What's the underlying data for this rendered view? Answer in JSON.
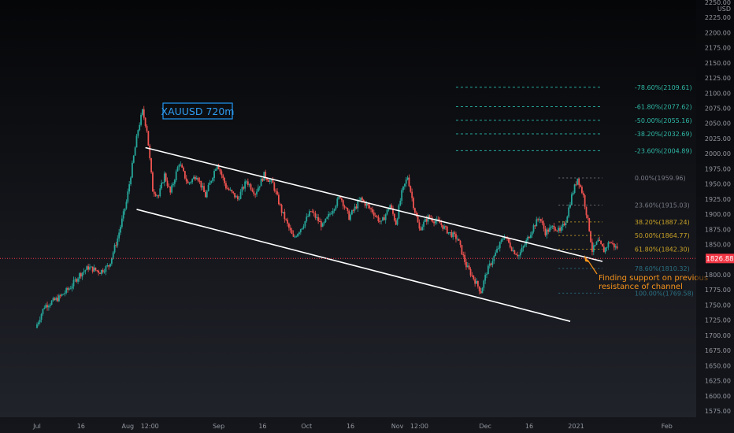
{
  "chart_data": {
    "type": "candlestick",
    "symbol_box": "XAUUSD 720m",
    "currency": "USD",
    "y_range": [
      1562,
      2255
    ],
    "y_ticks": [
      1575,
      1600,
      1625,
      1650,
      1675,
      1700,
      1725,
      1750,
      1775,
      1800,
      1825,
      1850,
      1875,
      1900,
      1925,
      1950,
      1975,
      2000,
      2025,
      2050,
      2075,
      2100,
      2125,
      2150,
      2175,
      2200,
      2225
    ],
    "y_top_cut_label": "2250.00",
    "x_ticks": [
      {
        "label": "Jul",
        "day": 0
      },
      {
        "label": "16",
        "day": 15
      },
      {
        "label": "Aug",
        "day": 31
      },
      {
        "label": "12:00",
        "day": 38.5
      },
      {
        "label": "Sep",
        "day": 62
      },
      {
        "label": "16",
        "day": 77
      },
      {
        "label": "Oct",
        "day": 92
      },
      {
        "label": "16",
        "day": 107
      },
      {
        "label": "Nov",
        "day": 123
      },
      {
        "label": "12:00",
        "day": 130.5
      },
      {
        "label": "Dec",
        "day": 153
      },
      {
        "label": "16",
        "day": 168
      },
      {
        "label": "2021",
        "day": 184
      },
      {
        "label": "Feb",
        "day": 215
      }
    ],
    "current_price": "1826.88",
    "current_price_value": 1826.88,
    "fib_upper": [
      {
        "label": "-78.60%(2109.61)",
        "value": 2109.61
      },
      {
        "label": "-61.80%(2077.62)",
        "value": 2077.62
      },
      {
        "label": "-50.00%(2055.16)",
        "value": 2055.16
      },
      {
        "label": "-38.20%(2032.69)",
        "value": 2032.69
      },
      {
        "label": "-23.60%(2004.89)",
        "value": 2004.89
      }
    ],
    "fib_lower": [
      {
        "label": "0.00%(1959.96)",
        "value": 1959.96,
        "color": "#787b86"
      },
      {
        "label": "23.60%(1915.03)",
        "value": 1915.03,
        "color": "#787b86"
      },
      {
        "label": "38.20%(1887.24)",
        "value": 1887.24,
        "color": "#c9a227"
      },
      {
        "label": "50.00%(1864.77)",
        "value": 1864.77,
        "color": "#c9a227"
      },
      {
        "label": "61.80%(1842.30)",
        "value": 1842.3,
        "color": "#c9a227"
      },
      {
        "label": "78.60%(1810.32)",
        "value": 1810.32,
        "color": "#2a6f80"
      },
      {
        "label": "100.00%(1769.58)",
        "value": 1769.58,
        "color": "#2a6f80"
      }
    ],
    "channel": {
      "upper": [
        [
          37,
          2010
        ],
        [
          193,
          1822
        ]
      ],
      "lower": [
        [
          34,
          1908
        ],
        [
          182,
          1723
        ]
      ]
    },
    "annotation": {
      "lines": [
        "Finding support on previous",
        "resistance of channel"
      ],
      "color": "#f7931a"
    },
    "colors": {
      "up": "#26a69a",
      "down": "#ef5350",
      "fib_upper": "#26a69a",
      "channel": "#ffffff",
      "price_tag": "#f23645"
    },
    "keypoints": [
      [
        0,
        1712
      ],
      [
        3,
        1748
      ],
      [
        8,
        1762
      ],
      [
        12,
        1780
      ],
      [
        15,
        1800
      ],
      [
        18,
        1812
      ],
      [
        22,
        1805
      ],
      [
        25,
        1815
      ],
      [
        28,
        1860
      ],
      [
        31,
        1920
      ],
      [
        33,
        1980
      ],
      [
        35,
        2040
      ],
      [
        36.5,
        2070
      ],
      [
        38,
        2040
      ],
      [
        40,
        1940
      ],
      [
        42,
        1930
      ],
      [
        44,
        1965
      ],
      [
        46,
        1935
      ],
      [
        49,
        1985
      ],
      [
        52,
        1950
      ],
      [
        55,
        1965
      ],
      [
        58,
        1930
      ],
      [
        62,
        1985
      ],
      [
        65,
        1945
      ],
      [
        69,
        1925
      ],
      [
        72,
        1955
      ],
      [
        75,
        1935
      ],
      [
        78,
        1965
      ],
      [
        81,
        1950
      ],
      [
        84,
        1905
      ],
      [
        88,
        1860
      ],
      [
        91,
        1880
      ],
      [
        94,
        1905
      ],
      [
        98,
        1880
      ],
      [
        101,
        1905
      ],
      [
        104,
        1930
      ],
      [
        107,
        1895
      ],
      [
        111,
        1925
      ],
      [
        115,
        1905
      ],
      [
        118,
        1885
      ],
      [
        121,
        1915
      ],
      [
        123,
        1885
      ],
      [
        125,
        1935
      ],
      [
        127,
        1962
      ],
      [
        129,
        1915
      ],
      [
        131,
        1875
      ],
      [
        134,
        1895
      ],
      [
        138,
        1885
      ],
      [
        141,
        1870
      ],
      [
        144,
        1860
      ],
      [
        147,
        1815
      ],
      [
        150,
        1790
      ],
      [
        152,
        1772
      ],
      [
        154,
        1805
      ],
      [
        157,
        1835
      ],
      [
        160,
        1865
      ],
      [
        163,
        1840
      ],
      [
        165,
        1832
      ],
      [
        167,
        1850
      ],
      [
        170,
        1880
      ],
      [
        172,
        1895
      ],
      [
        174,
        1870
      ],
      [
        177,
        1880
      ],
      [
        179,
        1870
      ],
      [
        181,
        1890
      ],
      [
        183,
        1930
      ],
      [
        185,
        1960
      ],
      [
        187,
        1930
      ],
      [
        189,
        1875
      ],
      [
        190,
        1840
      ],
      [
        192,
        1855
      ],
      [
        194,
        1840
      ],
      [
        196,
        1855
      ],
      [
        198,
        1845
      ]
    ]
  }
}
